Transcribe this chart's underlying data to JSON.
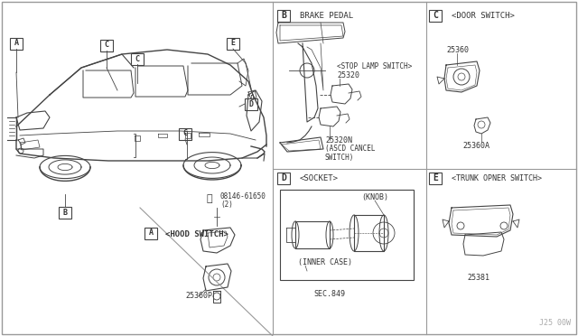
{
  "bg_color": "#ffffff",
  "line_color": "#444444",
  "text_color": "#333333",
  "border_color": "#999999",
  "watermark": "J25 00W",
  "section_B_text": {
    "title": "BRAKE PEDAL",
    "part1": "25320",
    "part1_label": "<STOP LAMP SWITCH>",
    "part2": "25320N",
    "part2_label": "(ASCD CANCEL",
    "part2_label2": "SWITCH)"
  },
  "section_C_text": {
    "title": "<DOOR SWITCH>",
    "part1": "25360",
    "part2": "25360A"
  },
  "section_D_text": {
    "title": "<SOCKET>",
    "knob": "(KNOB)",
    "inner": "(INNER CASE)",
    "sec": "SEC.849"
  },
  "section_E_text": {
    "title": "<TRUNK OPNER SWITCH>",
    "part1": "25381"
  },
  "section_A_text": {
    "title": "<HOOD SWITCH>",
    "bolt": "08146-61650",
    "bolt2": "(2)",
    "part1": "25360P"
  }
}
